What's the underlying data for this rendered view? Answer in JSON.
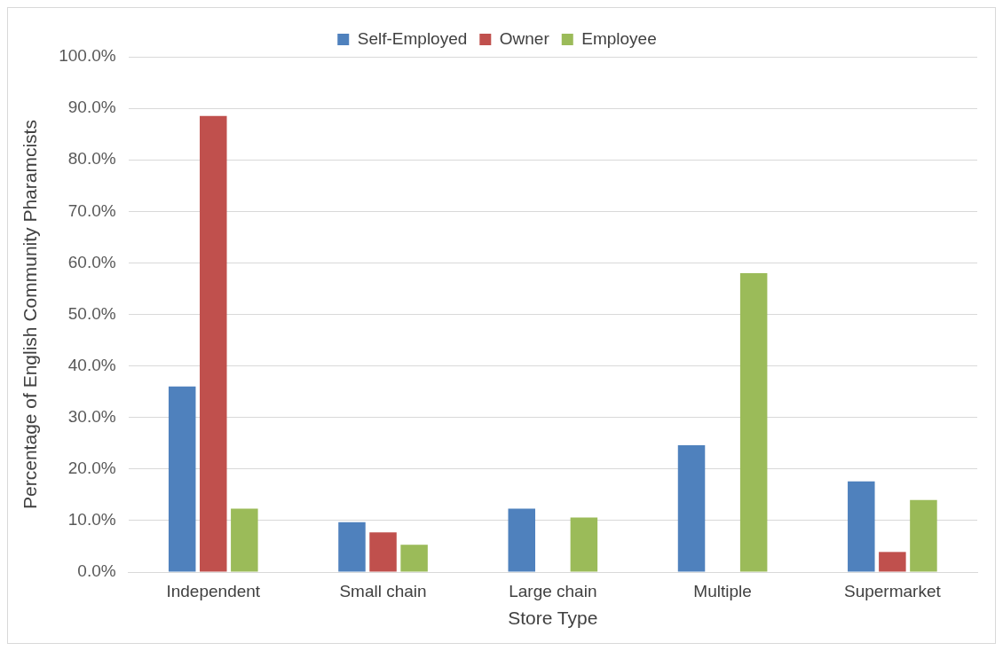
{
  "chart_data": {
    "type": "bar",
    "xlabel": "Store Type",
    "ylabel": "Percentage of English Community Pharamcists",
    "categories": [
      "Independent",
      "Small chain",
      "Large chain",
      "Multiple",
      "Supermarket"
    ],
    "series": [
      {
        "name": "Self-Employed",
        "color": "#4f81bd",
        "values": [
          36.0,
          9.7,
          12.3,
          24.6,
          17.6
        ]
      },
      {
        "name": "Owner",
        "color": "#c0504d",
        "values": [
          88.5,
          7.7,
          0,
          0,
          3.9
        ]
      },
      {
        "name": "Employee",
        "color": "#9bbb59",
        "values": [
          12.3,
          5.3,
          10.6,
          58.0,
          14.0
        ]
      }
    ],
    "ylim": [
      0,
      100
    ],
    "yticks": [
      {
        "value": 0,
        "label": "0.0%"
      },
      {
        "value": 10,
        "label": "10.0%"
      },
      {
        "value": 20,
        "label": "20.0%"
      },
      {
        "value": 30,
        "label": "30.0%"
      },
      {
        "value": 40,
        "label": "40.0%"
      },
      {
        "value": 50,
        "label": "50.0%"
      },
      {
        "value": 60,
        "label": "60.0%"
      },
      {
        "value": 70,
        "label": "70.0%"
      },
      {
        "value": 80,
        "label": "80.0%"
      },
      {
        "value": 90,
        "label": "90.0%"
      },
      {
        "value": 100,
        "label": "100.0%"
      }
    ],
    "grid": "y",
    "legend": "top"
  }
}
